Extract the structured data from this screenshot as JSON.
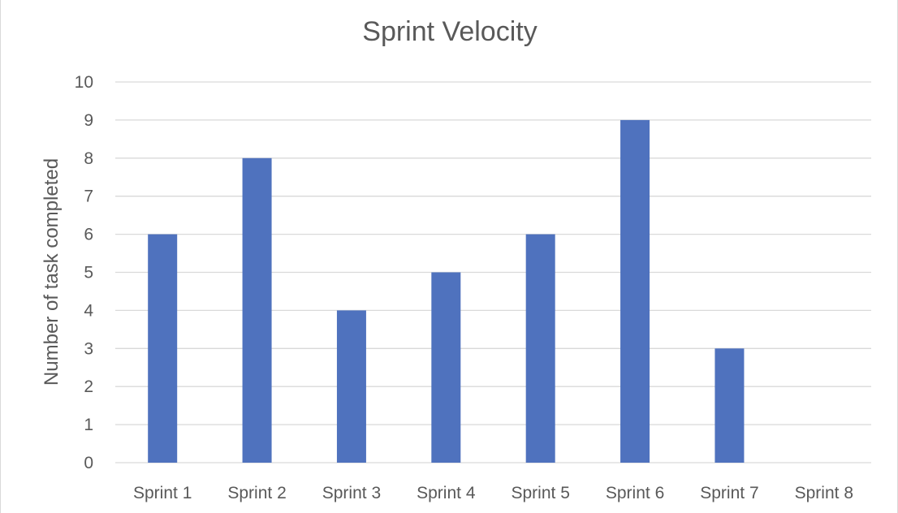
{
  "chart_data": {
    "type": "bar",
    "title": "Sprint Velocity",
    "xlabel": "",
    "ylabel": "Number of task completed",
    "categories": [
      "Sprint 1",
      "Sprint 2",
      "Sprint 3",
      "Sprint 4",
      "Sprint 5",
      "Sprint 6",
      "Sprint 7",
      "Sprint 8"
    ],
    "values": [
      6,
      8,
      4,
      5,
      6,
      9,
      3,
      0
    ],
    "ylim": [
      0,
      10
    ],
    "yticks": [
      "0",
      "1",
      "2",
      "3",
      "4",
      "5",
      "6",
      "7",
      "8",
      "9",
      "10"
    ],
    "grid": true,
    "legend": "none",
    "bar_color": "#4F72BE"
  }
}
